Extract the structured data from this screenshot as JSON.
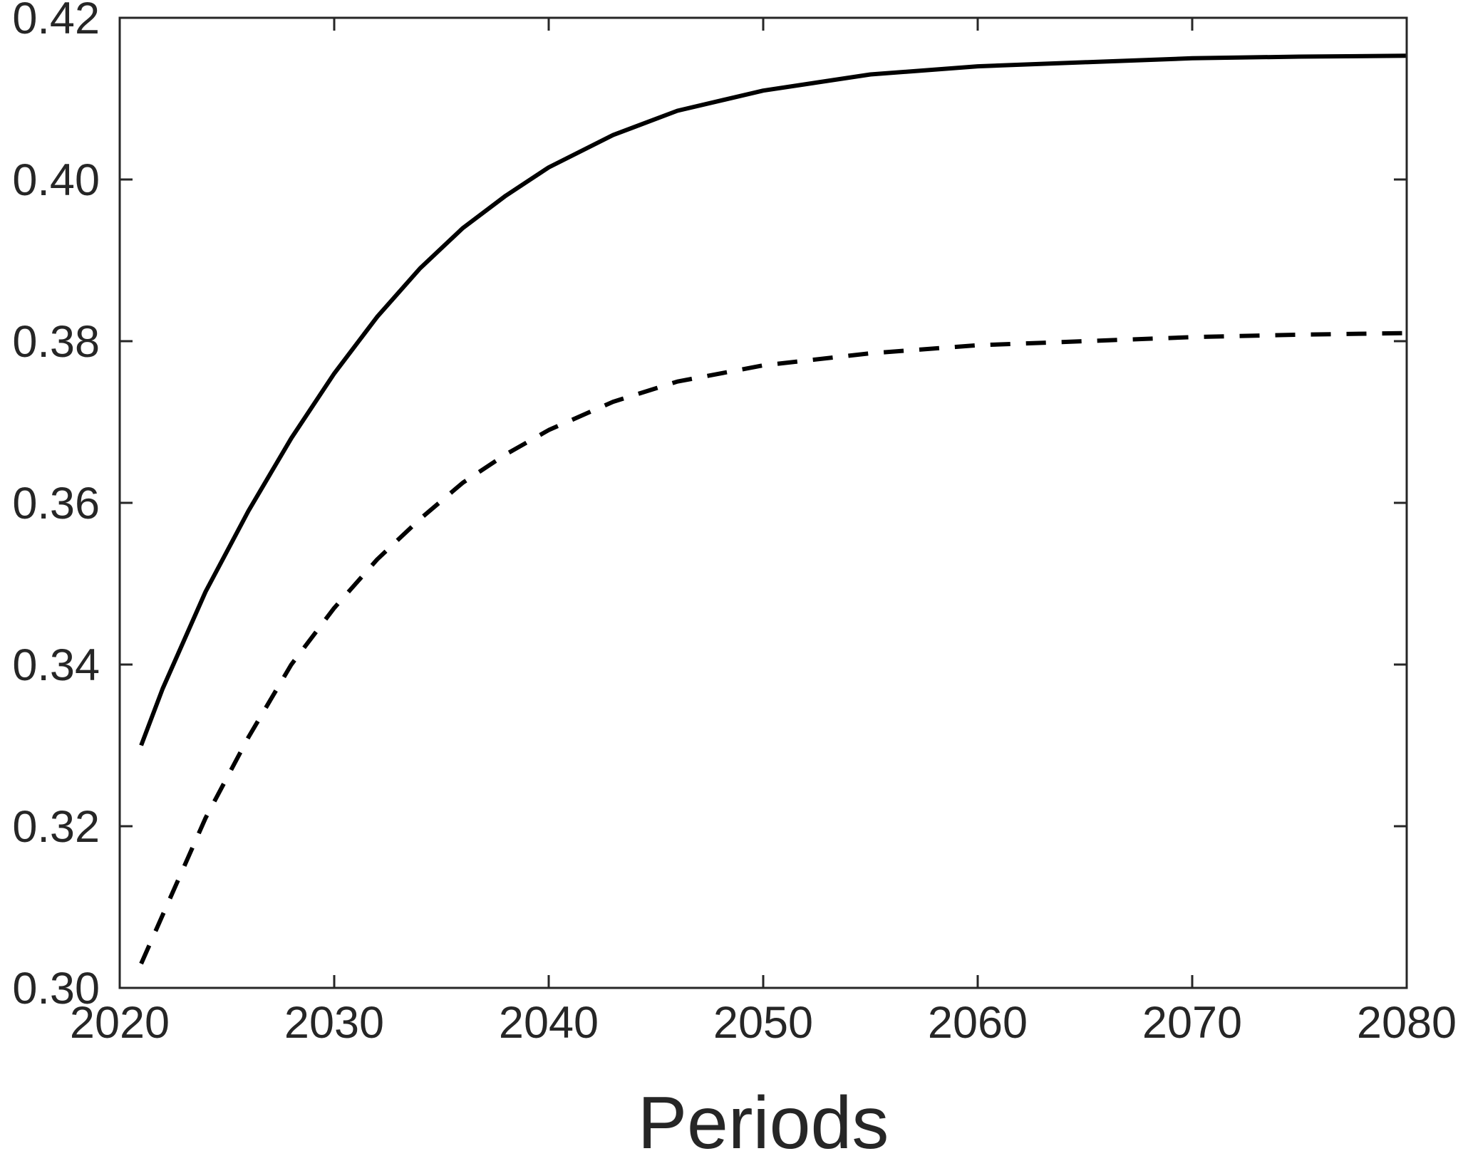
{
  "chart_data": {
    "type": "line",
    "title": "",
    "xlabel": "Periods",
    "ylabel": "",
    "xlim": [
      2020,
      2080
    ],
    "ylim": [
      0.3,
      0.42
    ],
    "xticks": [
      "2020",
      "2030",
      "2040",
      "2050",
      "2060",
      "2070",
      "2080"
    ],
    "yticks": [
      "0.30",
      "0.32",
      "0.34",
      "0.36",
      "0.38",
      "0.40",
      "0.42"
    ],
    "grid": false,
    "legend": "none",
    "series": [
      {
        "style": "solid",
        "color": "#000000",
        "x": [
          2021,
          2022,
          2024,
          2026,
          2028,
          2030,
          2032,
          2034,
          2036,
          2038,
          2040,
          2043,
          2046,
          2050,
          2055,
          2060,
          2065,
          2070,
          2075,
          2080
        ],
        "values": [
          0.33,
          0.337,
          0.349,
          0.359,
          0.368,
          0.376,
          0.383,
          0.389,
          0.394,
          0.398,
          0.4015,
          0.4055,
          0.4085,
          0.411,
          0.413,
          0.414,
          0.4145,
          0.415,
          0.4152,
          0.4153
        ]
      },
      {
        "style": "dashed",
        "color": "#000000",
        "x": [
          2021,
          2022,
          2024,
          2026,
          2028,
          2030,
          2032,
          2034,
          2036,
          2038,
          2040,
          2043,
          2046,
          2050,
          2055,
          2060,
          2065,
          2070,
          2075,
          2080
        ],
        "values": [
          0.303,
          0.309,
          0.321,
          0.331,
          0.34,
          0.347,
          0.353,
          0.358,
          0.3625,
          0.366,
          0.369,
          0.3725,
          0.375,
          0.377,
          0.3785,
          0.3795,
          0.38,
          0.3805,
          0.3808,
          0.381
        ]
      }
    ]
  }
}
